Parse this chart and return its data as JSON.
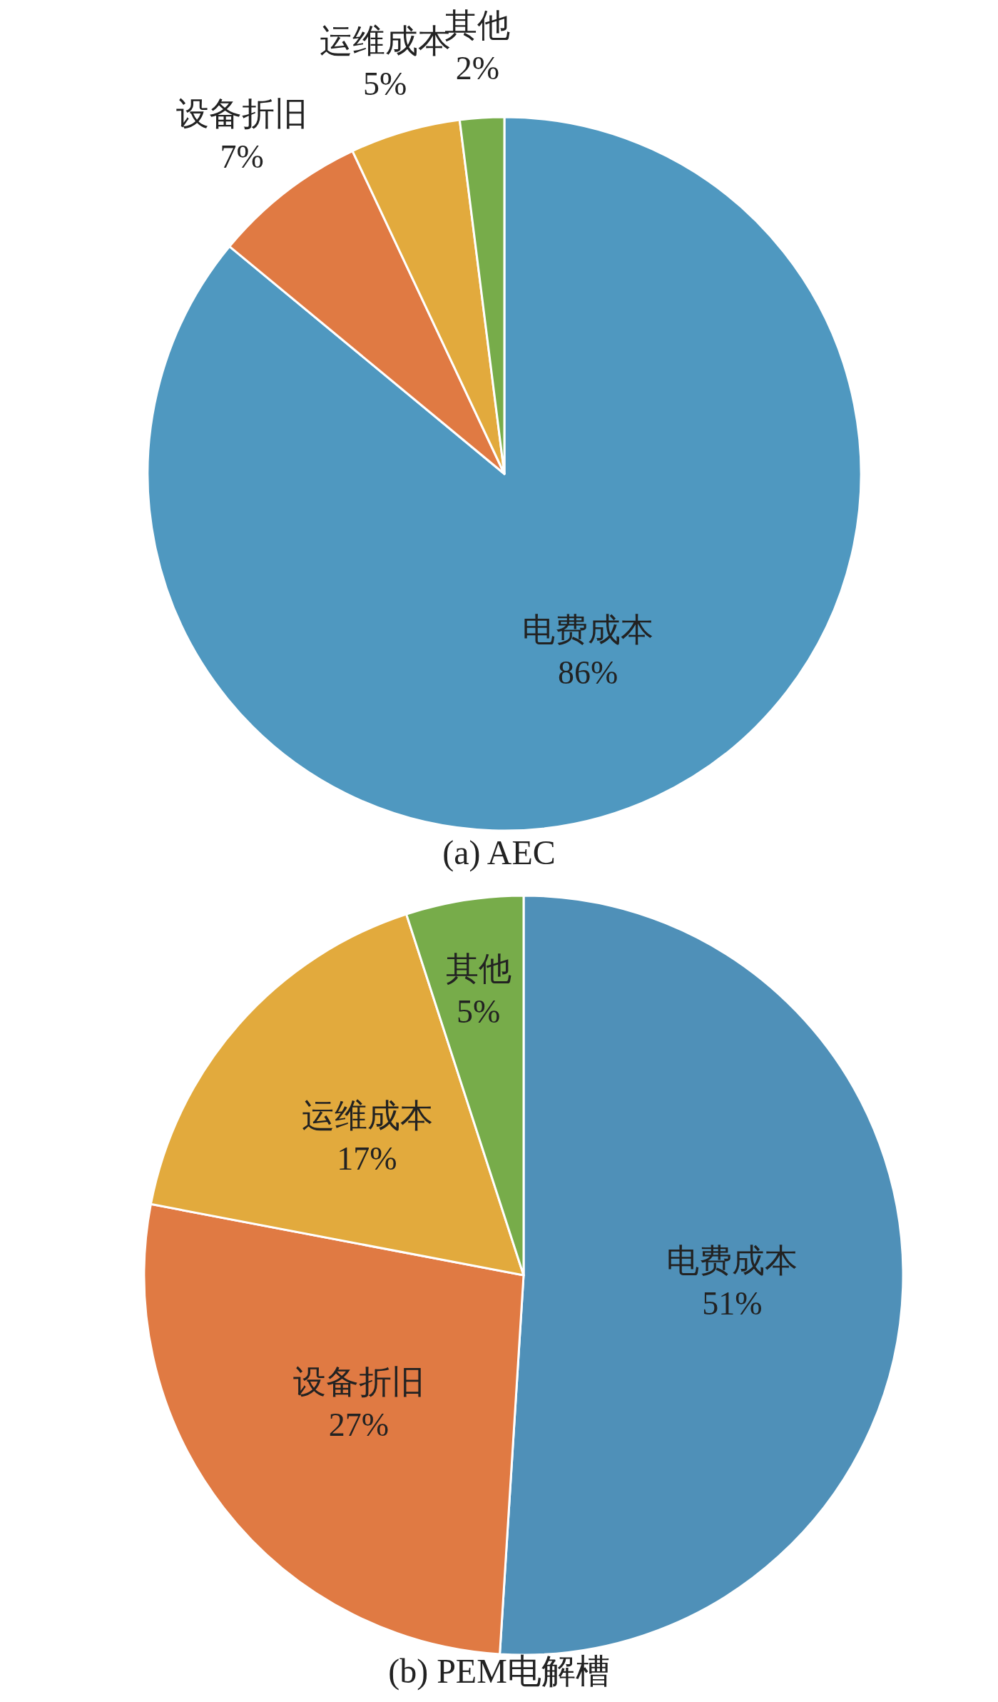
{
  "chart_data": [
    {
      "type": "pie",
      "title": "(a) AEC",
      "categories": [
        "电费成本",
        "设备折旧",
        "运维成本",
        "其他"
      ],
      "values": [
        86,
        7,
        5,
        2
      ],
      "colors": [
        "#4f98c0",
        "#e07a43",
        "#e2aa3d",
        "#77ac4a"
      ],
      "value_labels": [
        "86%",
        "7%",
        "5%",
        "2%"
      ]
    },
    {
      "type": "pie",
      "title": "(b) PEM电解槽",
      "categories": [
        "电费成本",
        "设备折旧",
        "运维成本",
        "其他"
      ],
      "values": [
        51,
        27,
        17,
        5
      ],
      "colors": [
        "#4f90b8",
        "#e07a43",
        "#e2aa3d",
        "#77ac4a"
      ],
      "value_labels": [
        "51%",
        "27%",
        "17%",
        "5%"
      ]
    }
  ]
}
